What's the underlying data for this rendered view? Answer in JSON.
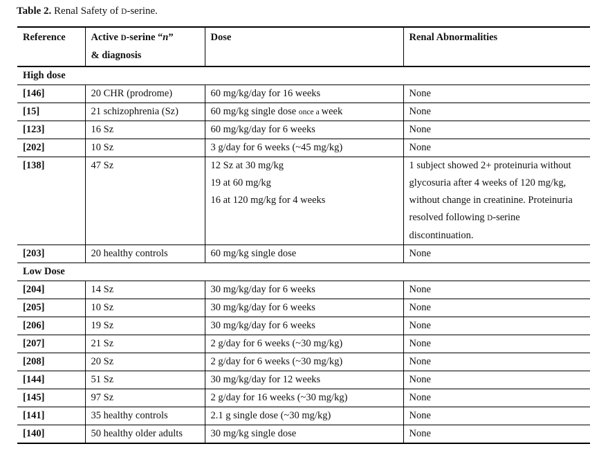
{
  "colors": {
    "text": "#111111",
    "rule": "#000000",
    "background": "#ffffff"
  },
  "caption_segments": [
    {
      "t": "Table 2.",
      "s": "b"
    },
    {
      "t": " Renal Safety of "
    },
    {
      "t": "D",
      "s": "sc"
    },
    {
      "t": "-serine."
    }
  ],
  "table": {
    "columns": [
      {
        "label": "Reference"
      },
      {
        "label_segments": [
          {
            "t": "Active "
          },
          {
            "t": "D",
            "s": "sc"
          },
          {
            "t": "-serine “"
          },
          {
            "t": "n",
            "s": "it"
          },
          {
            "t": "”"
          },
          {
            "br": true
          },
          {
            "t": "& diagnosis"
          }
        ]
      },
      {
        "label": "Dose"
      },
      {
        "label": "Renal Abnormalities"
      }
    ],
    "sections": [
      {
        "label": "High dose",
        "rows": [
          {
            "ref": "[146]",
            "diagnosis": "20 CHR (prodrome)",
            "dose": "60 mg/kg/day for 16 weeks",
            "renal": "None"
          },
          {
            "ref": "[15]",
            "diagnosis": "21 schizophrenia (Sz)",
            "dose": [
              {
                "t": "60 mg/kg single dose "
              },
              {
                "t": "once a ",
                "s": "small"
              },
              {
                "t": "week"
              }
            ],
            "renal": "None"
          },
          {
            "ref": "[123]",
            "diagnosis": "16 Sz",
            "dose": "60 mg/kg/day for 6 weeks",
            "renal": "None"
          },
          {
            "ref": "[202]",
            "diagnosis": "10 Sz",
            "dose": "3 g/day for 6 weeks (~45 mg/kg)",
            "renal": "None"
          },
          {
            "ref": "[138]",
            "diagnosis": "47 Sz",
            "dose": [
              {
                "t": "12 Sz at 30 mg/kg"
              },
              {
                "br": true
              },
              {
                "t": "19 at 60 mg/kg"
              },
              {
                "br": true
              },
              {
                "t": "16 at 120 mg/kg for 4 weeks"
              }
            ],
            "renal": [
              {
                "t": "1 subject showed 2+ proteinuria without glycosuria after 4 weeks of 120 mg/kg, without change in creatinine. Proteinuria resolved following "
              },
              {
                "t": "D",
                "s": "sc"
              },
              {
                "t": "-serine discontinuation."
              }
            ]
          },
          {
            "ref": "[203]",
            "diagnosis": "20 healthy controls",
            "dose": "60 mg/kg single dose",
            "renal": "None"
          }
        ]
      },
      {
        "label": "Low Dose",
        "rows": [
          {
            "ref": "[204]",
            "diagnosis": "14 Sz",
            "dose": "30 mg/kg/day for 6 weeks",
            "renal": "None"
          },
          {
            "ref": "[205]",
            "diagnosis": "10 Sz",
            "dose": "30 mg/kg/day for 6 weeks",
            "renal": "None"
          },
          {
            "ref": "[206]",
            "diagnosis": "19 Sz",
            "dose": "30 mg/kg/day for 6 weeks",
            "renal": "None"
          },
          {
            "ref": "[207]",
            "diagnosis": "21 Sz",
            "dose": "2 g/day for 6 weeks (~30 mg/kg)",
            "renal": "None"
          },
          {
            "ref": "[208]",
            "diagnosis": "20 Sz",
            "dose": "2 g/day for 6 weeks (~30 mg/kg)",
            "renal": "None"
          },
          {
            "ref": "[144]",
            "diagnosis": "51 Sz",
            "dose": "30 mg/kg/day for 12 weeks",
            "renal": "None"
          },
          {
            "ref": "[145]",
            "diagnosis": "97 Sz",
            "dose": "2 g/day for 16 weeks (~30 mg/kg)",
            "renal": "None"
          },
          {
            "ref": "[141]",
            "diagnosis": "35 healthy controls",
            "dose": "2.1 g single dose (~30 mg/kg)",
            "renal": "None"
          },
          {
            "ref": "[140]",
            "diagnosis": "50 healthy older adults",
            "dose": "30 mg/kg single dose",
            "renal": "None"
          }
        ]
      }
    ]
  }
}
